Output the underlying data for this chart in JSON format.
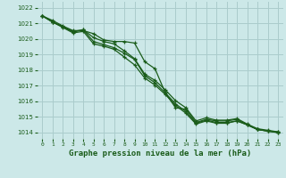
{
  "title": "Graphe pression niveau de la mer (hPa)",
  "background_color": "#cce8e8",
  "grid_color": "#aacccc",
  "line_color": "#1a5c1a",
  "text_color": "#1a5c1a",
  "xlim": [
    -0.5,
    23.5
  ],
  "ylim": [
    1013.6,
    1022.4
  ],
  "yticks": [
    1014,
    1015,
    1016,
    1017,
    1018,
    1019,
    1020,
    1021,
    1022
  ],
  "xticks": [
    0,
    1,
    2,
    3,
    4,
    5,
    6,
    7,
    8,
    9,
    10,
    11,
    12,
    13,
    14,
    15,
    16,
    17,
    18,
    19,
    20,
    21,
    22,
    23
  ],
  "series": [
    [
      1021.5,
      1021.2,
      1020.85,
      1020.55,
      1020.55,
      1020.35,
      1019.95,
      1019.85,
      1019.85,
      1019.75,
      1018.55,
      1018.1,
      1016.55,
      1015.6,
      1015.5,
      1014.65,
      1014.85,
      1014.75,
      1014.75,
      1014.85,
      1014.5,
      1014.2,
      1014.1,
      1014.05
    ],
    [
      1021.5,
      1021.1,
      1020.8,
      1020.45,
      1020.6,
      1019.85,
      1019.65,
      1019.45,
      1019.1,
      1018.7,
      1017.65,
      1017.2,
      1016.55,
      1015.85,
      1015.35,
      1014.6,
      1014.8,
      1014.65,
      1014.65,
      1014.75,
      1014.5,
      1014.2,
      1014.1,
      1014.0
    ],
    [
      1021.5,
      1021.1,
      1020.75,
      1020.4,
      1020.5,
      1019.7,
      1019.55,
      1019.35,
      1018.85,
      1018.35,
      1017.5,
      1017.05,
      1016.45,
      1015.75,
      1015.25,
      1014.55,
      1014.75,
      1014.6,
      1014.6,
      1014.75,
      1014.5,
      1014.2,
      1014.1,
      1014.0
    ],
    [
      1021.5,
      1021.1,
      1020.8,
      1020.5,
      1020.6,
      1020.1,
      1019.85,
      1019.7,
      1019.25,
      1018.75,
      1017.75,
      1017.35,
      1016.75,
      1016.05,
      1015.6,
      1014.75,
      1014.95,
      1014.8,
      1014.8,
      1014.9,
      1014.55,
      1014.25,
      1014.15,
      1014.05
    ]
  ]
}
